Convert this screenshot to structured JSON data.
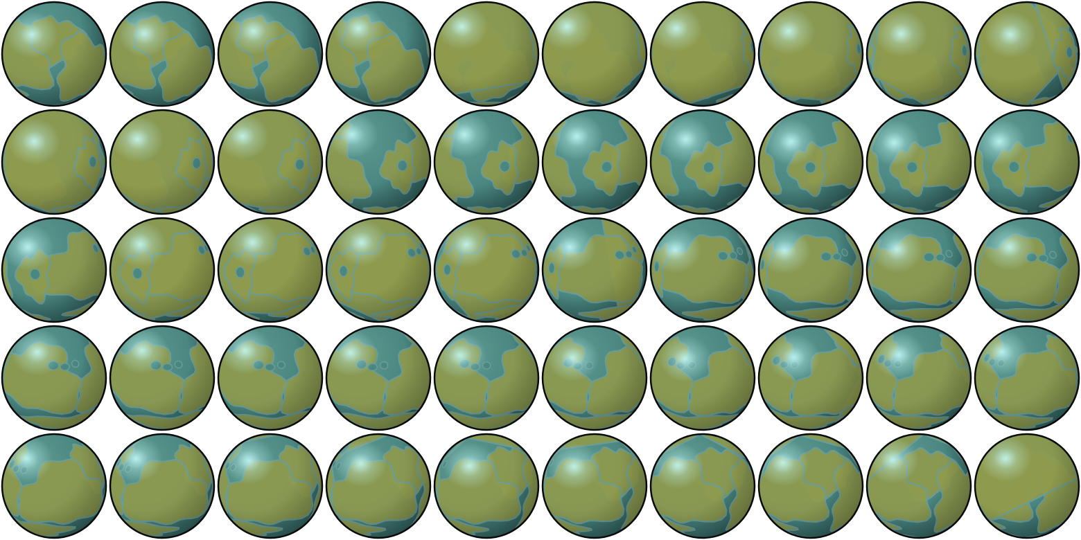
{
  "sprite_sheet": {
    "subject": "rotating-planet",
    "columns": 10,
    "rows": 5,
    "frame_count": 50,
    "colors": {
      "background": "#ffffff",
      "ocean_light": "#5d9a8f",
      "ocean": "#4b8781",
      "ocean_dark": "#2f5f5c",
      "land_light": "#c9d285",
      "land": "#8f9a4d",
      "land_dark": "#5f6b33",
      "specular": "#c8ffff",
      "coast": "#6a9c98",
      "outline": "#0a0a0a"
    }
  }
}
